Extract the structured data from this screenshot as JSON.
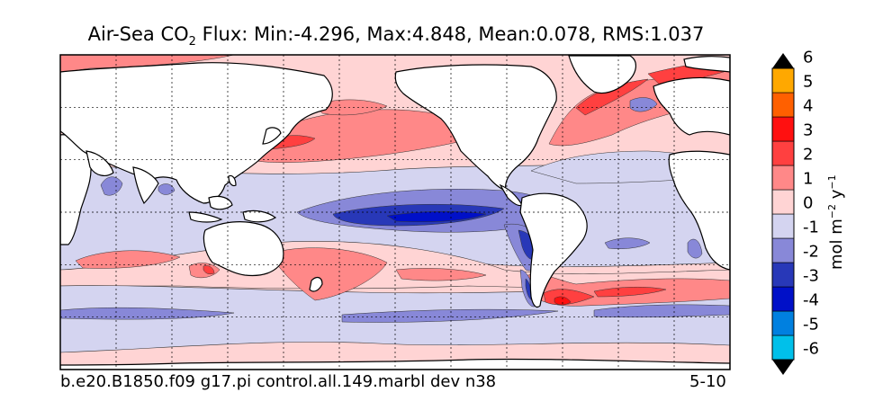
{
  "chart_data": {
    "type": "heatmap",
    "subtype": "global contour map",
    "title_main": "Air-Sea CO",
    "title_sub": "2",
    "title_stats": "Flux: Min:-4.296, Max:4.848, Mean:0.078, RMS:1.037",
    "stats": {
      "min": -4.296,
      "max": 4.848,
      "mean": 0.078,
      "rms": 1.037
    },
    "case_label": "b.e20.B1850.f09 g17.pi control.all.149.marbl dev n38",
    "period_label": "5-10",
    "colorbar": {
      "unit_prefix": "mol m",
      "unit_exp1": "−2",
      "unit_mid": " y",
      "unit_exp2": "−1",
      "levels": [
        -6,
        -5,
        -4,
        -3,
        -2,
        -1,
        0,
        1,
        2,
        3,
        4,
        5,
        6
      ],
      "tick_labels": [
        "-6",
        "-5",
        "-4",
        "-3",
        "-2",
        "-1",
        "0",
        "1",
        "2",
        "3",
        "4",
        "5",
        "6"
      ],
      "extend": "both",
      "colors": [
        "#00ffff",
        "#00c0ea",
        "#0080e0",
        "#0010c8",
        "#2838b8",
        "#8888d8",
        "#d4d4f0",
        "#ffd4d4",
        "#ff8888",
        "#ff4040",
        "#ff1010",
        "#ff6000",
        "#ffa800",
        "#ffff00"
      ]
    },
    "grid": {
      "lon_lines": 12,
      "lat_lines": 6,
      "style": "dotted"
    },
    "land_color": "#ffffff"
  }
}
